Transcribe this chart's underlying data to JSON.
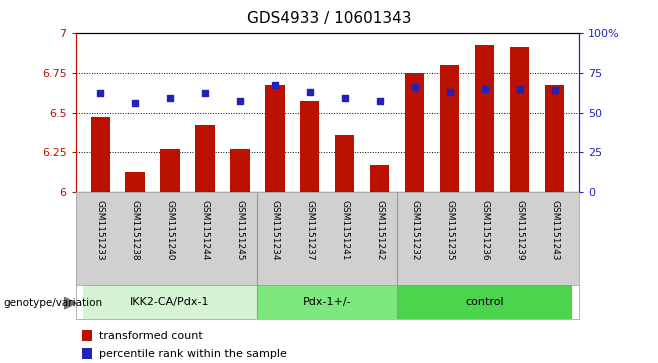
{
  "title": "GDS4933 / 10601343",
  "samples": [
    "GSM1151233",
    "GSM1151238",
    "GSM1151240",
    "GSM1151244",
    "GSM1151245",
    "GSM1151234",
    "GSM1151237",
    "GSM1151241",
    "GSM1151242",
    "GSM1151232",
    "GSM1151235",
    "GSM1151236",
    "GSM1151239",
    "GSM1151243"
  ],
  "red_values": [
    6.47,
    6.13,
    6.27,
    6.42,
    6.27,
    6.67,
    6.57,
    6.36,
    6.17,
    6.75,
    6.8,
    6.92,
    6.91,
    6.67
  ],
  "blue_values": [
    6.62,
    6.56,
    6.59,
    6.62,
    6.57,
    6.67,
    6.63,
    6.59,
    6.57,
    6.66,
    6.63,
    6.65,
    6.65,
    6.64
  ],
  "groups": [
    {
      "label": "IKK2-CA/Pdx-1",
      "start": 0,
      "end": 5,
      "color": "#d4f4d4"
    },
    {
      "label": "Pdx-1+/-",
      "start": 5,
      "end": 9,
      "color": "#7de87d"
    },
    {
      "label": "control",
      "start": 9,
      "end": 14,
      "color": "#4cd44c"
    }
  ],
  "ylim_left": [
    6.0,
    7.0
  ],
  "ylim_right": [
    0,
    100
  ],
  "yticks_left": [
    6.0,
    6.25,
    6.5,
    6.75,
    7.0
  ],
  "ytick_labels_left": [
    "6",
    "6.25",
    "6.5",
    "6.75",
    "7"
  ],
  "yticks_right": [
    0,
    25,
    50,
    75,
    100
  ],
  "ytick_labels_right": [
    "0",
    "25",
    "50",
    "75",
    "100%"
  ],
  "bar_color": "#bb1100",
  "dot_color": "#2222bb",
  "grid_color": "#000000",
  "background_color": "#ffffff",
  "bar_width": 0.55,
  "genotype_label": "genotype/variation"
}
